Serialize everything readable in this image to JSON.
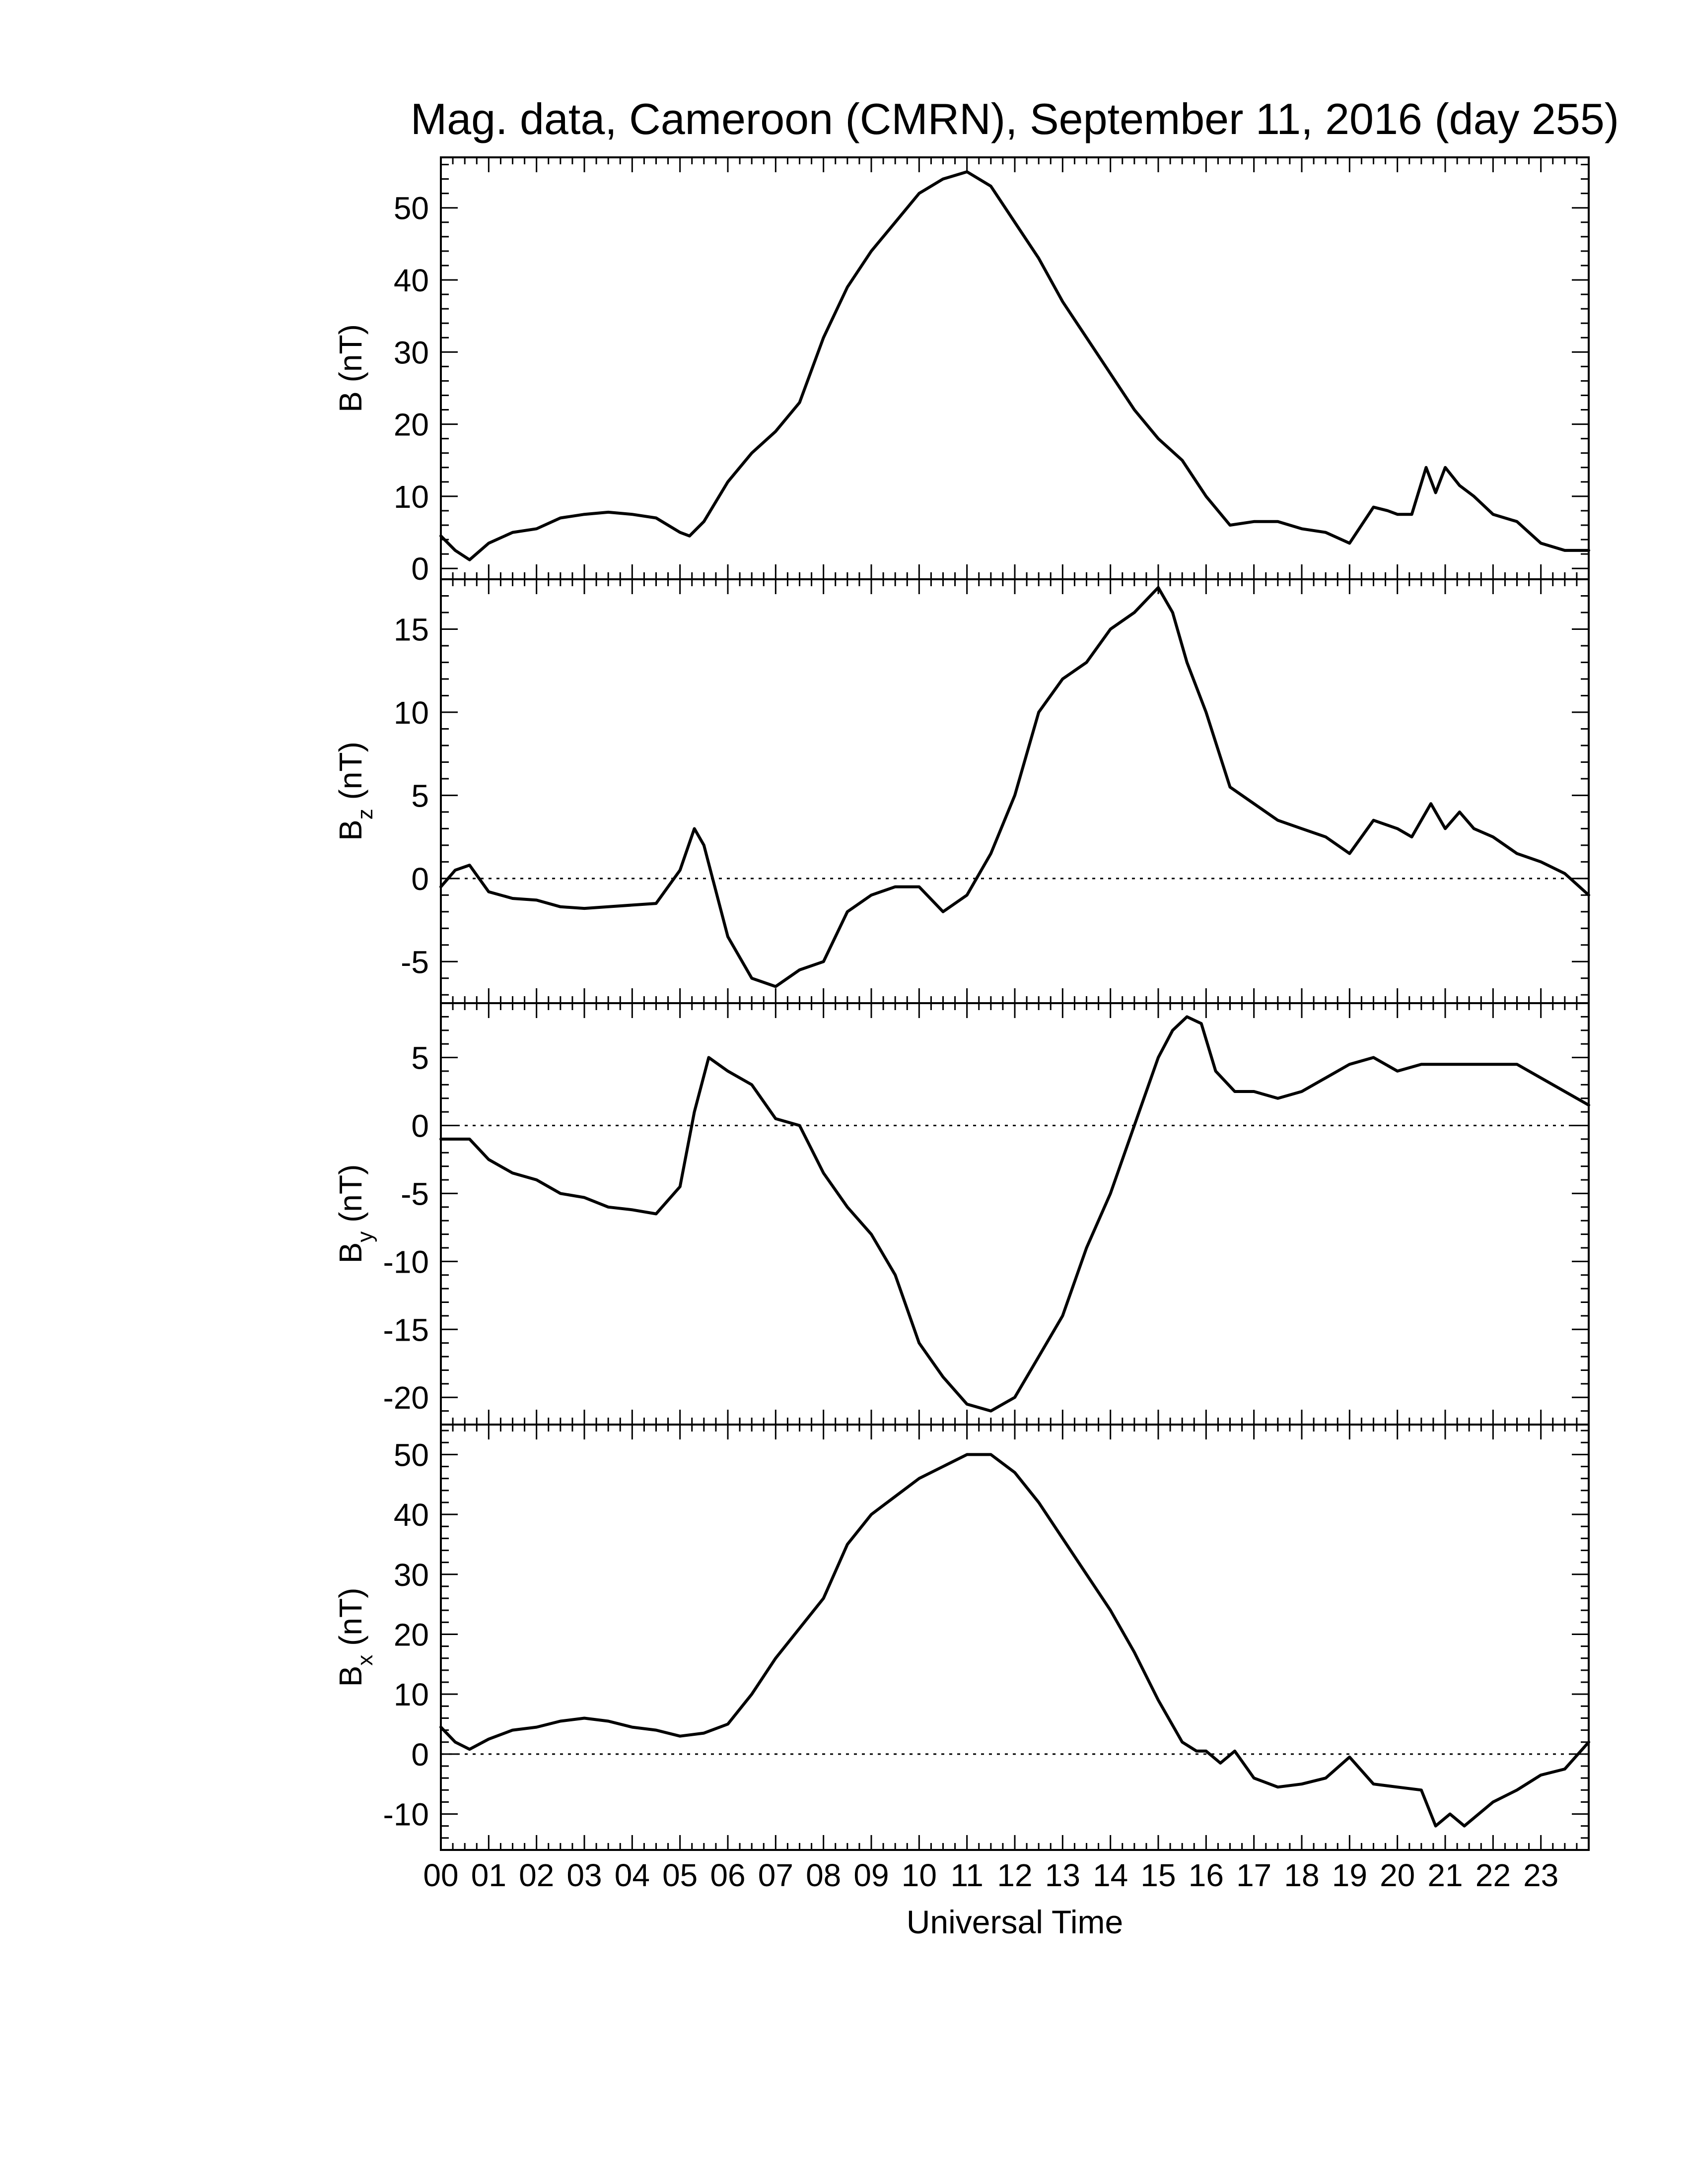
{
  "title": "Mag. data, Cameroon (CMRN), September 11, 2016 (day 255)",
  "xlabel": "Universal Time",
  "chart_data": [
    {
      "type": "line",
      "ylabel": "B (nT)",
      "ylabel_main": "B",
      "ylabel_sub": "",
      "ylabel_unit": "(nT)",
      "ylim": [
        -1.5,
        57
      ],
      "yticks": [
        0,
        10,
        20,
        30,
        40,
        50
      ],
      "ytick_labels": [
        "0",
        "10",
        "20",
        "30",
        "40",
        "50"
      ],
      "zero_line": false,
      "x": [
        0,
        0.3,
        0.6,
        1.0,
        1.5,
        2.0,
        2.5,
        3.0,
        3.5,
        4.0,
        4.5,
        5.0,
        5.2,
        5.5,
        6.0,
        6.5,
        7.0,
        7.5,
        8.0,
        8.5,
        9.0,
        9.5,
        10.0,
        10.5,
        11.0,
        11.5,
        12.0,
        12.5,
        13.0,
        13.5,
        14.0,
        14.5,
        15.0,
        15.5,
        16.0,
        16.5,
        17.0,
        17.5,
        18.0,
        18.5,
        19.0,
        19.5,
        19.8,
        20.0,
        20.3,
        20.6,
        20.8,
        21.0,
        21.3,
        21.6,
        22.0,
        22.5,
        23.0,
        23.5,
        24.0
      ],
      "y": [
        4.5,
        2.5,
        1.2,
        3.5,
        5.0,
        5.5,
        7.0,
        7.5,
        7.8,
        7.5,
        7.0,
        5.0,
        4.5,
        6.5,
        12,
        16,
        19,
        23,
        32,
        39,
        44,
        48,
        52,
        54,
        55,
        53,
        48,
        43,
        37,
        32,
        27,
        22,
        18,
        15,
        10,
        6,
        6.5,
        6.5,
        5.5,
        5.0,
        3.5,
        8.5,
        8.0,
        7.5,
        7.5,
        14,
        10.5,
        14,
        11.5,
        10,
        7.5,
        6.5,
        3.5,
        2.5,
        2.5
      ]
    },
    {
      "type": "line",
      "ylabel": "Bz (nT)",
      "ylabel_main": "B",
      "ylabel_sub": "z",
      "ylabel_unit": "(nT)",
      "ylim": [
        -7.5,
        18
      ],
      "yticks": [
        -5,
        0,
        5,
        10,
        15
      ],
      "ytick_labels": [
        "-5",
        "0",
        "5",
        "10",
        "15"
      ],
      "zero_line": true,
      "x": [
        0,
        0.3,
        0.6,
        1.0,
        1.5,
        2.0,
        2.5,
        3.0,
        3.5,
        4.0,
        4.5,
        5.0,
        5.3,
        5.5,
        6.0,
        6.5,
        7.0,
        7.5,
        8.0,
        8.5,
        9.0,
        9.5,
        10.0,
        10.5,
        11.0,
        11.5,
        12.0,
        12.5,
        13.0,
        13.5,
        14.0,
        14.5,
        15.0,
        15.3,
        15.6,
        16.0,
        16.5,
        17.0,
        17.5,
        18.0,
        18.5,
        19.0,
        19.5,
        20.0,
        20.3,
        20.7,
        21.0,
        21.3,
        21.6,
        22.0,
        22.5,
        23.0,
        23.5,
        24.0
      ],
      "y": [
        -0.5,
        0.5,
        0.8,
        -0.8,
        -1.2,
        -1.3,
        -1.7,
        -1.8,
        -1.7,
        -1.6,
        -1.5,
        0.5,
        3.0,
        2.0,
        -3.5,
        -6.0,
        -6.5,
        -5.5,
        -5.0,
        -2.0,
        -1.0,
        -0.5,
        -0.5,
        -2.0,
        -1.0,
        1.5,
        5.0,
        10,
        12,
        13,
        15,
        16,
        17.5,
        16,
        13,
        10,
        5.5,
        4.5,
        3.5,
        3.0,
        2.5,
        1.5,
        3.5,
        3.0,
        2.5,
        4.5,
        3.0,
        4.0,
        3.0,
        2.5,
        1.5,
        1.0,
        0.3,
        -1.0
      ]
    },
    {
      "type": "line",
      "ylabel": "By (nT)",
      "ylabel_main": "B",
      "ylabel_sub": "y",
      "ylabel_unit": "(nT)",
      "ylim": [
        -22,
        9
      ],
      "yticks": [
        -20,
        -15,
        -10,
        -5,
        0,
        5
      ],
      "ytick_labels": [
        "-20",
        "-15",
        "-10",
        "-5",
        "0",
        "5"
      ],
      "zero_line": true,
      "x": [
        0,
        0.3,
        0.6,
        1.0,
        1.5,
        2.0,
        2.5,
        3.0,
        3.5,
        4.0,
        4.5,
        5.0,
        5.3,
        5.6,
        6.0,
        6.5,
        7.0,
        7.5,
        8.0,
        8.5,
        9.0,
        9.5,
        10.0,
        10.5,
        11.0,
        11.5,
        12.0,
        12.5,
        13.0,
        13.5,
        14.0,
        14.5,
        15.0,
        15.3,
        15.6,
        15.9,
        16.2,
        16.6,
        17.0,
        17.5,
        18.0,
        18.5,
        19.0,
        19.5,
        20.0,
        20.5,
        21.0,
        21.5,
        22.0,
        22.5,
        23.0,
        23.5,
        24.0
      ],
      "y": [
        -1.0,
        -1.0,
        -1.0,
        -2.5,
        -3.5,
        -4.0,
        -5.0,
        -5.3,
        -6.0,
        -6.2,
        -6.5,
        -4.5,
        1.0,
        5.0,
        4.0,
        3.0,
        0.5,
        0.0,
        -3.5,
        -6.0,
        -8.0,
        -11,
        -16,
        -18.5,
        -20.5,
        -21,
        -20,
        -17,
        -14,
        -9,
        -5,
        0,
        5,
        7,
        8.0,
        7.5,
        4.0,
        2.5,
        2.5,
        2.0,
        2.5,
        3.5,
        4.5,
        5.0,
        4.0,
        4.5,
        4.5,
        4.5,
        4.5,
        4.5,
        3.5,
        2.5,
        1.5
      ]
    },
    {
      "type": "line",
      "ylabel": "Bx (nT)",
      "ylabel_main": "B",
      "ylabel_sub": "x",
      "ylabel_unit": "(nT)",
      "ylim": [
        -16,
        55
      ],
      "yticks": [
        -10,
        0,
        10,
        20,
        30,
        40,
        50
      ],
      "ytick_labels": [
        "-10",
        "0",
        "10",
        "20",
        "30",
        "40",
        "50"
      ],
      "zero_line": true,
      "x": [
        0,
        0.3,
        0.6,
        1.0,
        1.5,
        2.0,
        2.5,
        3.0,
        3.5,
        4.0,
        4.5,
        5.0,
        5.5,
        6.0,
        6.5,
        7.0,
        7.5,
        8.0,
        8.5,
        9.0,
        9.5,
        10.0,
        10.5,
        11.0,
        11.5,
        12.0,
        12.5,
        13.0,
        13.5,
        14.0,
        14.5,
        15.0,
        15.5,
        15.8,
        16.0,
        16.3,
        16.6,
        17.0,
        17.5,
        18.0,
        18.5,
        19.0,
        19.5,
        20.0,
        20.5,
        20.8,
        21.1,
        21.4,
        22.0,
        22.5,
        23.0,
        23.5,
        24.0
      ],
      "y": [
        4.5,
        2.0,
        0.8,
        2.5,
        4.0,
        4.5,
        5.5,
        6.0,
        5.5,
        4.5,
        4.0,
        3.0,
        3.5,
        5.0,
        10,
        16,
        21,
        26,
        35,
        40,
        43,
        46,
        48,
        50,
        50,
        47,
        42,
        36,
        30,
        24,
        17,
        9,
        2.0,
        0.5,
        0.5,
        -1.5,
        0.5,
        -4.0,
        -5.5,
        -5.0,
        -4.0,
        -0.5,
        -5.0,
        -5.5,
        -6.0,
        -12,
        -10,
        -12,
        -8.0,
        -6.0,
        -3.5,
        -2.5,
        2.0
      ]
    }
  ],
  "x_axis": {
    "xlim": [
      0,
      24
    ],
    "major_ticks": [
      0,
      1,
      2,
      3,
      4,
      5,
      6,
      7,
      8,
      9,
      10,
      11,
      12,
      13,
      14,
      15,
      16,
      17,
      18,
      19,
      20,
      21,
      22,
      23
    ],
    "tick_labels": [
      "00",
      "01",
      "02",
      "03",
      "04",
      "05",
      "06",
      "07",
      "08",
      "09",
      "10",
      "11",
      "12",
      "13",
      "14",
      "15",
      "16",
      "17",
      "18",
      "19",
      "20",
      "21",
      "22",
      "23"
    ],
    "minor_per_major": 4
  }
}
